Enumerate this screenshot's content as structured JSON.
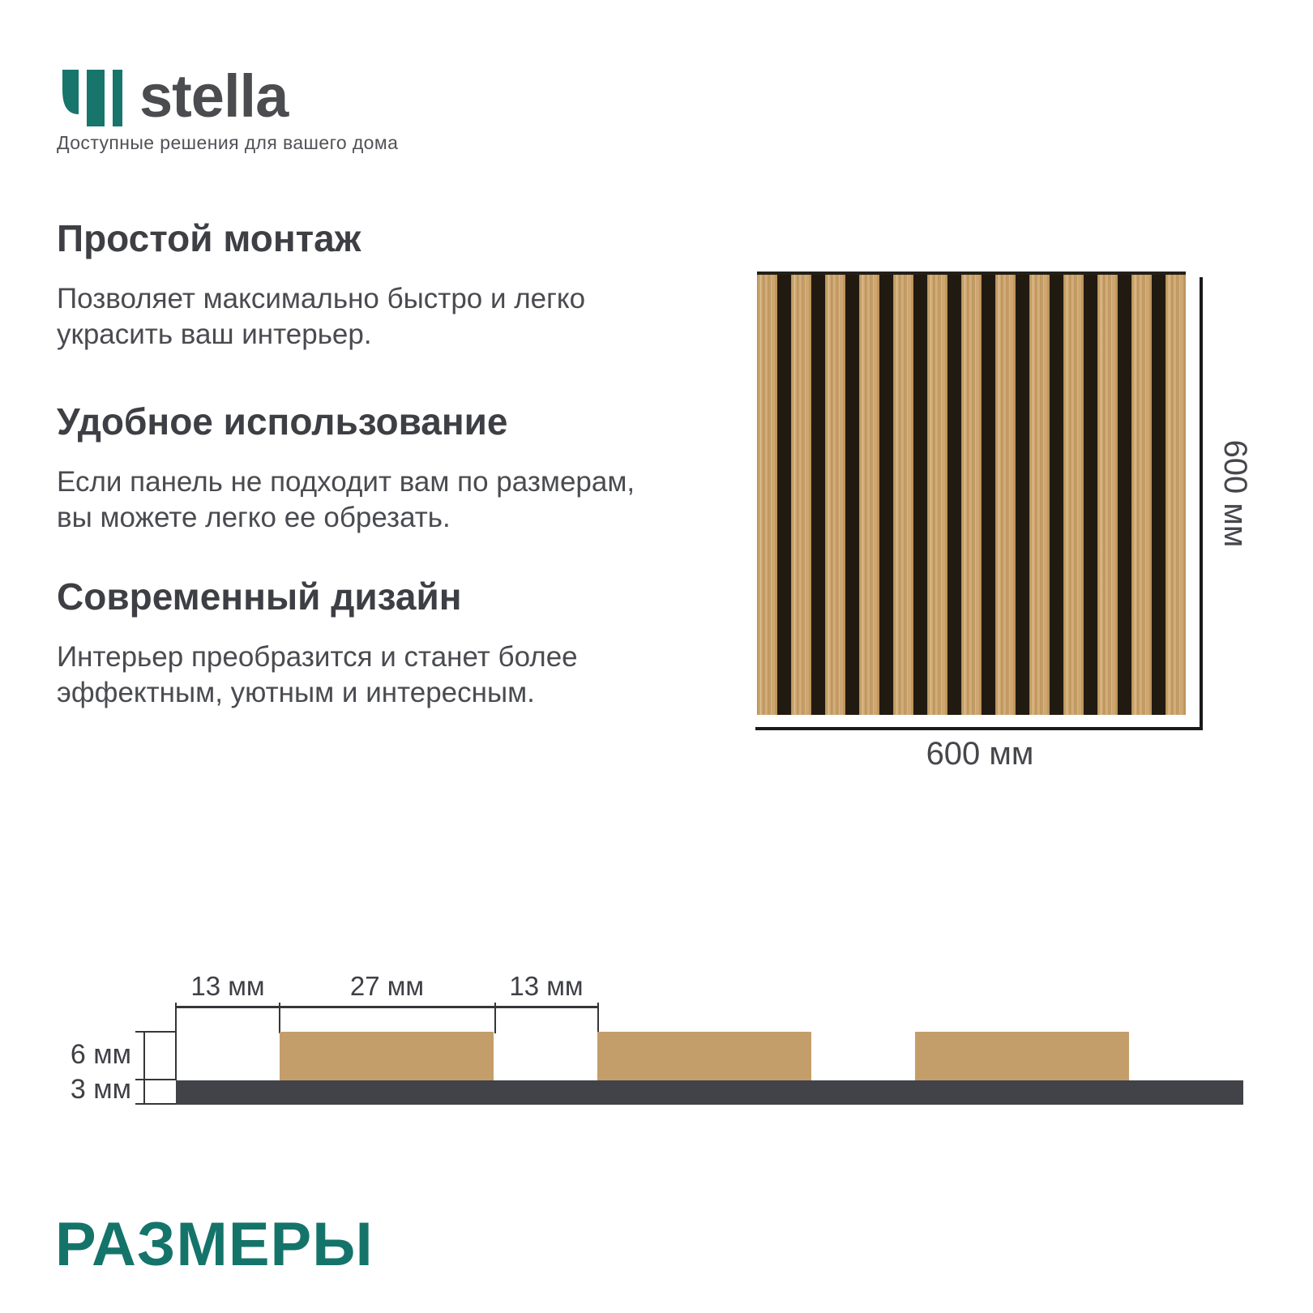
{
  "brand": {
    "name": "stella",
    "tagline": "Доступные решения для вашего дома",
    "logo_color": "#17756B",
    "text_color": "#4B4C50"
  },
  "features": [
    {
      "title": "Простой монтаж",
      "body": "Позволяет максимально быстро и легко\nукрасить ваш интерьер."
    },
    {
      "title": "Удобное использование",
      "body": "Если панель не подходит вам по размерам,\nвы можете легко ее обрезать."
    },
    {
      "title": "Современный дизайн",
      "body": "Интерьер преобразится и станет более\nэффектным, уютным и интересным."
    }
  ],
  "panel": {
    "width_label": "600 мм",
    "height_label": "600 мм",
    "slat_count": 13,
    "wood_color": "#C9A26A",
    "gap_color": "#211A11"
  },
  "cross_section": {
    "top_labels": [
      "13 мм",
      "27 мм",
      "13 мм"
    ],
    "side_labels": [
      "6 мм",
      "3 мм"
    ],
    "slat_blocks": 3,
    "slat_color": "#C39E6B",
    "base_color": "#424249"
  },
  "section_title": "РАЗМЕРЫ"
}
